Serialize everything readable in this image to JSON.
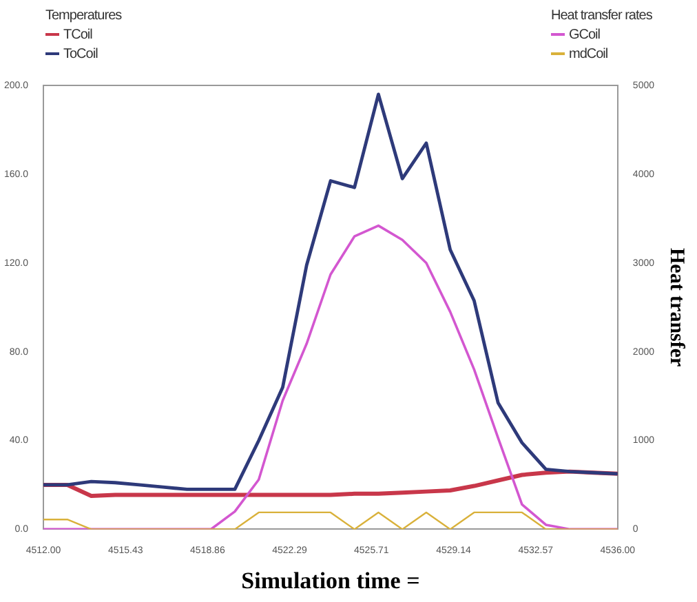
{
  "chart_data": {
    "type": "line",
    "xlabel": "Simulation time =",
    "y2label": "Heat transfer",
    "legend_title": "Temperatures",
    "annotations": [
      "Heat transfer rates"
    ],
    "x": [
      4512,
      4513,
      4514,
      4515,
      4516,
      4517,
      4518,
      4519,
      4520,
      4521,
      4522,
      4523,
      4524,
      4525,
      4526,
      4527,
      4528,
      4529,
      4530,
      4531,
      4532,
      4533,
      4534,
      4535,
      4536
    ],
    "series": [
      {
        "name": "TCoil",
        "color": "#c8374a",
        "values": [
          20,
          20,
          15,
          15.5,
          15.5,
          15.5,
          15.5,
          15.5,
          15.5,
          15.5,
          15.5,
          15.5,
          15.5,
          16,
          16,
          16.5,
          17,
          17.5,
          19.5,
          22,
          24.5,
          25.5,
          26,
          25.5,
          25
        ]
      },
      {
        "name": "ToCoil",
        "color": "#2e3a7a",
        "values": [
          20,
          20,
          21.5,
          21,
          20,
          19,
          18,
          18,
          18,
          40,
          64,
          119,
          157,
          154,
          196,
          158,
          174,
          126,
          103,
          57,
          39,
          27,
          26,
          25.5,
          25
        ]
      },
      {
        "name": "GCoil",
        "color": "#d357d0",
        "axis": "y2",
        "values": [
          0,
          0,
          0,
          0,
          0,
          0,
          0,
          0,
          200,
          560,
          1450,
          2090,
          2870,
          3300,
          3420,
          3260,
          3000,
          2450,
          1800,
          1030,
          280,
          50,
          0,
          0,
          0
        ]
      },
      {
        "name": "mdCoil",
        "color": "#d9b13a",
        "axis": "y2",
        "values": [
          110,
          110,
          0,
          0,
          0,
          0,
          0,
          0,
          0,
          190,
          190,
          190,
          190,
          0,
          190,
          0,
          190,
          0,
          190,
          190,
          190,
          0,
          0,
          0,
          0
        ]
      }
    ],
    "xlim": [
      4512,
      4536
    ],
    "xticks": [
      {
        "value": 4512,
        "label": "4512.00"
      },
      4515.43,
      4518.86,
      4522.29,
      4525.71,
      4529.14,
      4532.57,
      {
        "value": 4536,
        "label": "4536.00"
      }
    ],
    "ylim": [
      0,
      200
    ],
    "yticks": [
      {
        "value": 0,
        "label": "0.0"
      },
      {
        "value": 40,
        "label": "40.0"
      },
      {
        "value": 80,
        "label": "80.0"
      },
      {
        "value": 120,
        "label": "120.0"
      },
      {
        "value": 160,
        "label": "160.0"
      },
      {
        "value": 200,
        "label": "200.0"
      }
    ],
    "y2lim": [
      0,
      5000
    ],
    "y2ticks": [
      0,
      1000,
      2000,
      3000,
      4000,
      5000
    ],
    "legend": "top",
    "grid": false,
    "marker": "none",
    "line_style": "solid"
  }
}
